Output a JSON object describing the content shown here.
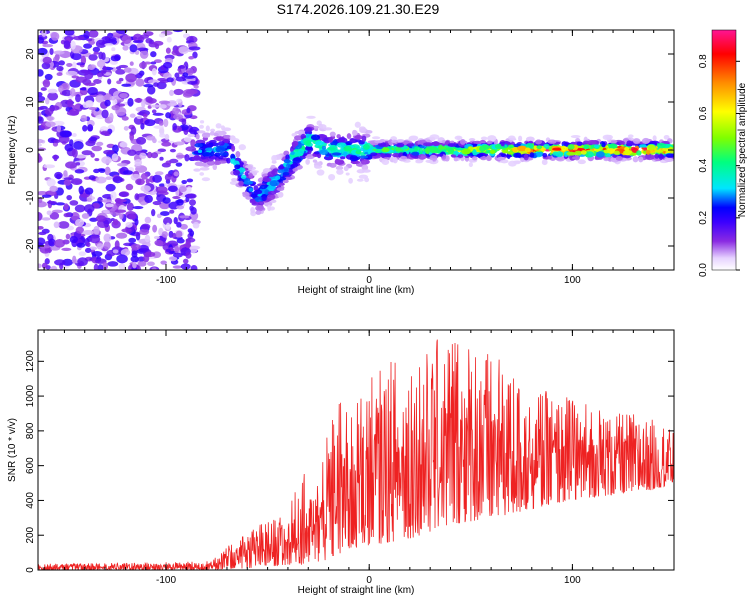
{
  "title": "S174.2026.109.21.30.E29",
  "chart_data": [
    {
      "type": "heatmap",
      "name": "spectrogram",
      "xlabel": "Height of straight line (km)",
      "ylabel": "Frequency (Hz)",
      "xlim": [
        -163,
        150
      ],
      "ylim": [
        -25,
        25
      ],
      "xticks": [
        -100,
        0,
        100
      ],
      "yticks": [
        -20,
        -10,
        0,
        10,
        20
      ],
      "colorbar": {
        "label": "Normalized spectral amplitude",
        "range": [
          0,
          0.92
        ],
        "ticks": [
          0.0,
          0.2,
          0.4,
          0.6,
          0.8
        ],
        "tick_labels": [
          "0.0",
          "0.2",
          "0.4",
          "0.6",
          "0.8"
        ],
        "colors": [
          "#ffffff",
          "#e6d2ff",
          "#8a2be2",
          "#3b00ff",
          "#0000ff",
          "#00e5ff",
          "#00ff7f",
          "#7fff00",
          "#ffff00",
          "#ff8c00",
          "#ff0000",
          "#ff1493"
        ]
      },
      "noise_region": {
        "x_range": [
          -163,
          -85
        ],
        "freq_range": [
          -25,
          25
        ]
      },
      "signal_track": [
        {
          "x": -85,
          "f": 0,
          "amp": 0.25
        },
        {
          "x": -70,
          "f": 0,
          "amp": 0.3
        },
        {
          "x": -55,
          "f": -10,
          "amp": 0.25
        },
        {
          "x": -45,
          "f": -6,
          "amp": 0.3
        },
        {
          "x": -38,
          "f": -2,
          "amp": 0.35
        },
        {
          "x": -30,
          "f": 2,
          "amp": 0.4
        },
        {
          "x": -20,
          "f": 0,
          "amp": 0.35
        },
        {
          "x": 0,
          "f": 0,
          "amp": 0.4
        },
        {
          "x": 50,
          "f": 0,
          "amp": 0.55
        },
        {
          "x": 80,
          "f": 0,
          "amp": 0.8
        },
        {
          "x": 100,
          "f": 0,
          "amp": 0.85
        },
        {
          "x": 150,
          "f": 0,
          "amp": 0.8
        }
      ]
    },
    {
      "type": "line",
      "name": "snr",
      "xlabel": "Height of straight line (km)",
      "ylabel": "SNR (10 * v/v)",
      "xlim": [
        -163,
        150
      ],
      "ylim": [
        0,
        1380
      ],
      "xticks": [
        -100,
        0,
        100
      ],
      "yticks": [
        0,
        200,
        400,
        600,
        800,
        1000,
        1200
      ],
      "line_color": "#ee2222",
      "envelope": {
        "x": [
          -163,
          -100,
          -80,
          -70,
          -60,
          -50,
          -40,
          -33,
          -28,
          -20,
          -15,
          -10,
          0,
          10,
          20,
          30,
          40,
          50,
          60,
          70,
          80,
          90,
          100,
          110,
          120,
          130,
          140,
          150
        ],
        "low": [
          0,
          0,
          0,
          5,
          10,
          20,
          30,
          30,
          40,
          60,
          90,
          120,
          140,
          160,
          180,
          220,
          260,
          280,
          300,
          320,
          350,
          380,
          400,
          420,
          430,
          450,
          460,
          500
        ],
        "high": [
          35,
          45,
          50,
          130,
          240,
          280,
          320,
          600,
          420,
          800,
          1000,
          900,
          1100,
          1200,
          1250,
          1300,
          1380,
          1300,
          1250,
          1150,
          1100,
          1000,
          1000,
          950,
          900,
          900,
          870,
          800
        ]
      }
    }
  ]
}
